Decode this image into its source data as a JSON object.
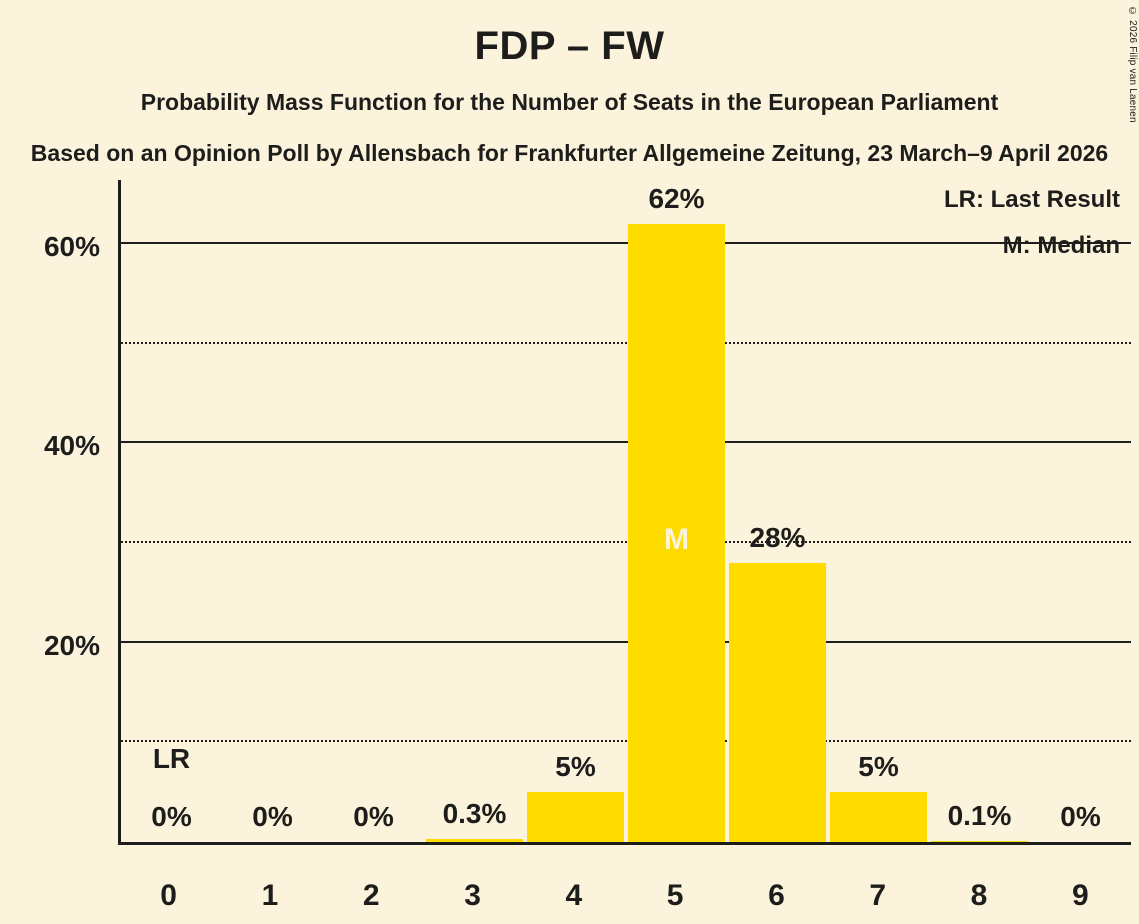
{
  "page": {
    "background_color": "#FCF3DC",
    "text_color": "#1d1d1b"
  },
  "header": {
    "title": "FDP – FW",
    "subtitle": "Probability Mass Function for the Number of Seats in the European Parliament",
    "source_line": "Based on an Opinion Poll by Allensbach for Frankfurter Allgemeine Zeitung, 23 March–9 April 2026",
    "copyright": "© 2026 Filip van Laenen"
  },
  "chart_data": {
    "type": "bar",
    "title": "FDP – FW",
    "categories": [
      "0",
      "1",
      "2",
      "3",
      "4",
      "5",
      "6",
      "7",
      "8",
      "9"
    ],
    "values": [
      0,
      0,
      0,
      0.3,
      5,
      62,
      28,
      5,
      0.1,
      0
    ],
    "bar_labels": [
      "0%",
      "0%",
      "0%",
      "0.3%",
      "5%",
      "62%",
      "28%",
      "5%",
      "0.1%",
      "0%"
    ],
    "bar_color": "#FFDC00",
    "y_axis": {
      "ticks": [
        {
          "value": 20,
          "label": "20%"
        },
        {
          "value": 40,
          "label": "40%"
        },
        {
          "value": 60,
          "label": "60%"
        }
      ],
      "solid_gridlines": [
        20,
        40,
        60
      ],
      "dotted_gridlines": [
        10,
        30,
        50
      ],
      "range": [
        0,
        66.5
      ]
    },
    "median": {
      "category": "5",
      "marker": "M"
    },
    "last_result": {
      "category": "0",
      "marker": "LR"
    },
    "legend": {
      "lr": "LR: Last Result",
      "m": "M: Median"
    }
  }
}
